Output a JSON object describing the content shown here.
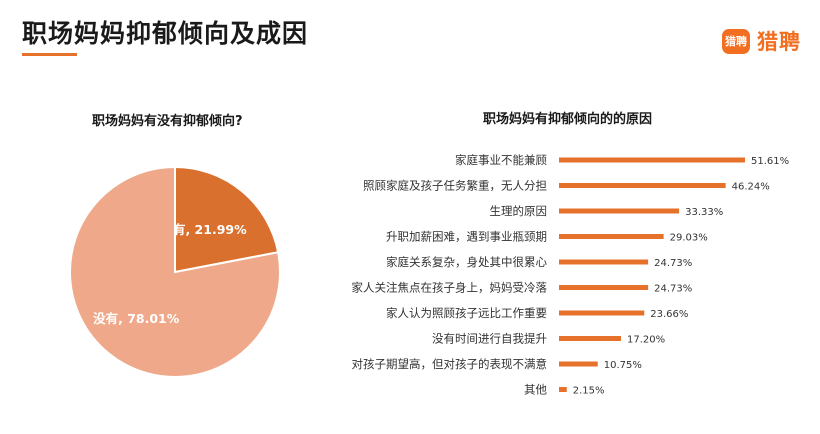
{
  "header": {
    "title": "职场妈妈抑郁倾向及成因",
    "brand_logo_text": "猎聘",
    "brand_name": "猎聘",
    "accent_color": "#e5712b"
  },
  "chart_data": [
    {
      "type": "pie",
      "title": "职场妈妈有没有抑郁倾向?",
      "categories": [
        "有",
        "没有"
      ],
      "values": [
        21.99,
        78.01
      ],
      "labels": [
        "有, 21.99%",
        "没有, 78.01%"
      ],
      "colors": [
        "#d9702e",
        "#efa98a"
      ]
    },
    {
      "type": "bar",
      "orientation": "horizontal",
      "title": "职场妈妈有抑郁倾向的的原因",
      "categories": [
        "家庭事业不能兼顾",
        "照顾家庭及孩子任务繁重，无人分担",
        "生理的原因",
        "升职加薪困难，遇到事业瓶颈期",
        "家庭关系复杂，身处其中很累心",
        "家人关注焦点在孩子身上，妈妈受冷落",
        "家人认为照顾孩子远比工作重要",
        "没有时间进行自我提升",
        "对孩子期望高，但对孩子的表现不满意",
        "其他"
      ],
      "values": [
        51.61,
        46.24,
        33.33,
        29.03,
        24.73,
        24.73,
        23.66,
        17.2,
        10.75,
        2.15
      ],
      "value_labels": [
        "51.61%",
        "46.24%",
        "33.33%",
        "29.03%",
        "24.73%",
        "24.73%",
        "23.66%",
        "17.20%",
        "10.75%",
        "2.15%"
      ],
      "bar_color": "#e5712b"
    }
  ]
}
